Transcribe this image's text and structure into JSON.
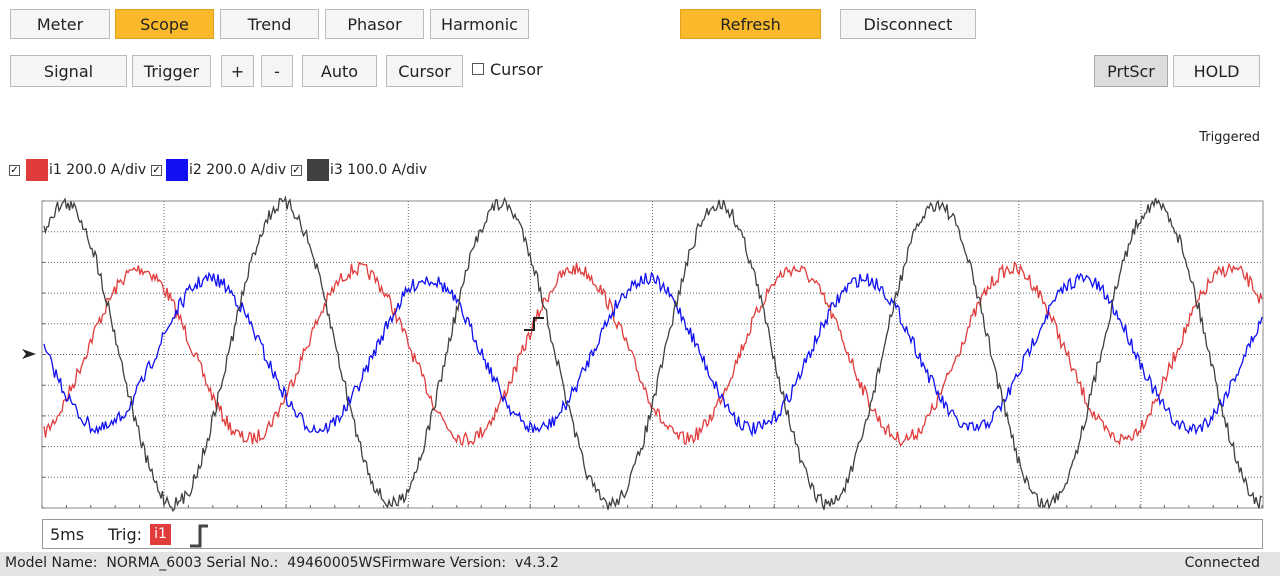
{
  "tabs": [
    "Meter",
    "Scope",
    "Trend",
    "Phasor",
    "Harmonic"
  ],
  "actions": [
    "Refresh",
    "Disconnect"
  ],
  "toolbar": [
    "Signal",
    "Trigger",
    "+",
    "-",
    "Auto",
    "Cursor"
  ],
  "cursor_checkbox": "Cursor",
  "right_buttons": [
    "PrtScr",
    "HOLD"
  ],
  "trigger_state": "Triggered",
  "channels": [
    {
      "name": "i1 200.0 A/div",
      "color": "#e03c3c"
    },
    {
      "name": "i2 200.0 A/div",
      "color": "#1010f0"
    },
    {
      "name": "i3 100.0 A/div",
      "color": "#404040"
    }
  ],
  "timebase": "5ms",
  "trigger_label": "Trig:",
  "trigger_channel": "i1",
  "statusbar": {
    "device": "Model Name:  NORMA_6003 Serial No.:  49460005WSFirmware Version:  v4.3.2",
    "connection": "Connected"
  }
}
